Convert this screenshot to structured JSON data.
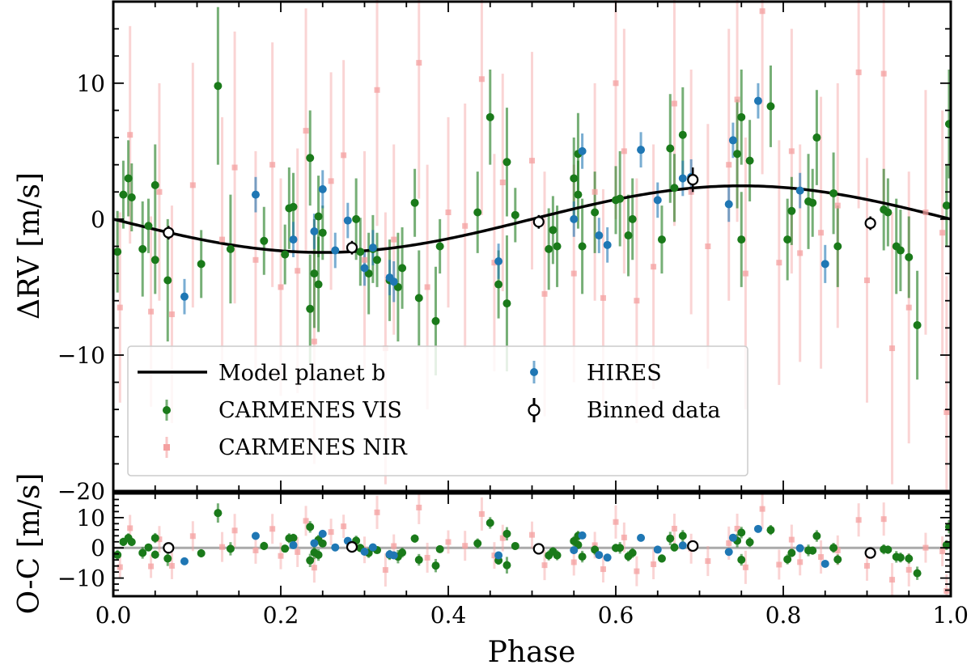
{
  "chart_data": [
    {
      "panel": "top",
      "type": "scatter",
      "xlim": [
        0.0,
        1.0
      ],
      "ylim": [
        -20,
        16
      ],
      "ylabel": "ΔRV [m/s]",
      "xticks": [
        0.0,
        0.2,
        0.4,
        0.6,
        0.8,
        1.0
      ],
      "yticks": [
        -20,
        -10,
        0,
        10
      ],
      "yticklabels": [
        "−20",
        "−10",
        "0",
        "10"
      ],
      "legend": {
        "position": "lower-left",
        "entries": [
          "Model planet b",
          "CARMENES VIS",
          "CARMENES NIR",
          "HIRES",
          "Binned data"
        ]
      },
      "model": {
        "name": "Model planet b",
        "amplitude": 2.45,
        "color": "#000000",
        "description_formula": "-K*sin(2*pi*phase)"
      },
      "series": [
        {
          "name": "CARMENES VIS",
          "color": "#1a7a1a",
          "marker": "circle",
          "points": [
            [
              0.005,
              -2.4,
              3.0
            ],
            [
              0.012,
              1.8,
              2.5
            ],
            [
              0.018,
              3.0,
              2.8
            ],
            [
              0.022,
              1.6,
              2.5
            ],
            [
              0.035,
              -2.2,
              3.5
            ],
            [
              0.042,
              -0.5,
              2.0
            ],
            [
              0.05,
              2.5,
              3.0
            ],
            [
              0.05,
              -3.0,
              2.5
            ],
            [
              0.065,
              -4.5,
              4.5
            ],
            [
              0.105,
              -3.3,
              2.5
            ],
            [
              0.125,
              9.8,
              5.8
            ],
            [
              0.14,
              -2.2,
              4.0
            ],
            [
              0.18,
              -1.6,
              2.5
            ],
            [
              0.205,
              -2.6,
              2.2
            ],
            [
              0.21,
              0.8,
              3.0
            ],
            [
              0.215,
              0.9,
              2.5
            ],
            [
              0.235,
              4.5,
              3.5
            ],
            [
              0.235,
              -6.6,
              4.0
            ],
            [
              0.24,
              -4.0,
              4.0
            ],
            [
              0.245,
              0.2,
              3.0
            ],
            [
              0.245,
              -4.8,
              3.5
            ],
            [
              0.25,
              -1.0,
              2.0
            ],
            [
              0.29,
              0.0,
              3.0
            ],
            [
              0.295,
              -2.4,
              2.5
            ],
            [
              0.305,
              -4.0,
              3.0
            ],
            [
              0.31,
              -2.2,
              2.5
            ],
            [
              0.315,
              -3.0,
              2.0
            ],
            [
              0.33,
              -4.5,
              3.0
            ],
            [
              0.34,
              -5.0,
              4.0
            ],
            [
              0.345,
              -3.6,
              3.0
            ],
            [
              0.36,
              1.2,
              2.5
            ],
            [
              0.365,
              -5.8,
              3.5
            ],
            [
              0.385,
              -7.5,
              4.0
            ],
            [
              0.39,
              -2.0,
              2.0
            ],
            [
              0.435,
              0.5,
              3.0
            ],
            [
              0.45,
              7.5,
              3.5
            ],
            [
              0.46,
              -4.8,
              2.5
            ],
            [
              0.47,
              4.2,
              4.0
            ],
            [
              0.47,
              -6.2,
              5.0
            ],
            [
              0.48,
              0.3,
              2.0
            ],
            [
              0.52,
              -2.2,
              3.0
            ],
            [
              0.525,
              -0.8,
              2.5
            ],
            [
              0.53,
              -2.0,
              3.0
            ],
            [
              0.55,
              3.0,
              3.0
            ],
            [
              0.555,
              1.8,
              2.5
            ],
            [
              0.555,
              4.8,
              3.0
            ],
            [
              0.56,
              -2.0,
              3.5
            ],
            [
              0.575,
              0.5,
              3.0
            ],
            [
              0.6,
              1.4,
              2.5
            ],
            [
              0.605,
              1.5,
              3.5
            ],
            [
              0.615,
              -1.2,
              3.0
            ],
            [
              0.62,
              0.0,
              3.0
            ],
            [
              0.655,
              -1.5,
              2.5
            ],
            [
              0.665,
              5.2,
              4.0
            ],
            [
              0.67,
              2.3,
              2.5
            ],
            [
              0.68,
              6.2,
              3.5
            ],
            [
              0.745,
              4.8,
              4.0
            ],
            [
              0.75,
              -1.5,
              3.5
            ],
            [
              0.75,
              7.5,
              3.5
            ],
            [
              0.76,
              4.3,
              3.0
            ],
            [
              0.785,
              8.3,
              3.0
            ],
            [
              0.805,
              -1.5,
              3.0
            ],
            [
              0.81,
              0.6,
              2.5
            ],
            [
              0.83,
              1.3,
              3.5
            ],
            [
              0.835,
              1.2,
              2.5
            ],
            [
              0.84,
              6.0,
              3.5
            ],
            [
              0.86,
              1.9,
              3.0
            ],
            [
              0.865,
              -2.0,
              3.0
            ],
            [
              0.92,
              0.7,
              3.0
            ],
            [
              0.925,
              0.5,
              2.5
            ],
            [
              0.935,
              -2.0,
              3.5
            ],
            [
              0.94,
              -2.3,
              3.0
            ],
            [
              0.95,
              -2.8,
              3.0
            ],
            [
              0.96,
              -7.8,
              4.0
            ],
            [
              0.995,
              1.0,
              3.0
            ],
            [
              0.998,
              7.0,
              4.0
            ]
          ]
        },
        {
          "name": "CARMENES NIR",
          "color": "#f4a0a0",
          "marker": "square",
          "points": [
            [
              0.008,
              -6.5,
              7.0
            ],
            [
              0.02,
              6.2,
              8.0
            ],
            [
              0.045,
              -6.8,
              7.0
            ],
            [
              0.055,
              2.0,
              8.0
            ],
            [
              0.07,
              -7.0,
              8.0
            ],
            [
              0.095,
              2.5,
              9.0
            ],
            [
              0.13,
              -1.5,
              9.0
            ],
            [
              0.145,
              3.8,
              10.0
            ],
            [
              0.17,
              -3.0,
              8.0
            ],
            [
              0.19,
              4.0,
              9.0
            ],
            [
              0.2,
              -5.0,
              8.0
            ],
            [
              0.22,
              -3.8,
              9.0
            ],
            [
              0.23,
              6.5,
              9.0
            ],
            [
              0.24,
              -9.0,
              9.0
            ],
            [
              0.26,
              2.8,
              8.0
            ],
            [
              0.275,
              4.7,
              7.0
            ],
            [
              0.3,
              -3.0,
              8.0
            ],
            [
              0.315,
              9.5,
              10.0
            ],
            [
              0.325,
              -9.5,
              10.0
            ],
            [
              0.335,
              -1.5,
              7.0
            ],
            [
              0.365,
              11.5,
              10.0
            ],
            [
              0.375,
              -5.0,
              9.0
            ],
            [
              0.4,
              0.5,
              7.0
            ],
            [
              0.42,
              -0.5,
              9.0
            ],
            [
              0.44,
              10.3,
              10.0
            ],
            [
              0.455,
              -3.2,
              8.0
            ],
            [
              0.465,
              2.7,
              8.0
            ],
            [
              0.5,
              4.3,
              8.0
            ],
            [
              0.515,
              -5.5,
              9.0
            ],
            [
              0.55,
              -4.0,
              8.0
            ],
            [
              0.575,
              2.0,
              8.0
            ],
            [
              0.585,
              -5.8,
              8.0
            ],
            [
              0.6,
              10.0,
              10.0
            ],
            [
              0.61,
              5.0,
              9.0
            ],
            [
              0.625,
              -6.0,
              9.0
            ],
            [
              0.645,
              -3.5,
              9.0
            ],
            [
              0.67,
              8.5,
              9.0
            ],
            [
              0.69,
              2.0,
              9.0
            ],
            [
              0.71,
              -2.0,
              9.0
            ],
            [
              0.735,
              4.0,
              10.0
            ],
            [
              0.745,
              8.8,
              9.0
            ],
            [
              0.755,
              -4.0,
              10.0
            ],
            [
              0.775,
              15.3,
              12.0
            ],
            [
              0.795,
              -3.2,
              9.0
            ],
            [
              0.81,
              5.0,
              9.0
            ],
            [
              0.82,
              -2.5,
              8.0
            ],
            [
              0.845,
              -1.0,
              10.0
            ],
            [
              0.865,
              1.0,
              9.0
            ],
            [
              0.89,
              10.8,
              10.0
            ],
            [
              0.9,
              -4.5,
              9.0
            ],
            [
              0.92,
              10.7,
              10.0
            ],
            [
              0.93,
              -9.5,
              10.0
            ],
            [
              0.95,
              -6.5,
              10.0
            ],
            [
              0.97,
              0.5,
              9.0
            ],
            [
              0.99,
              -1.0,
              9.0
            ],
            [
              0.995,
              -14.2,
              10.0
            ]
          ]
        },
        {
          "name": "HIRES",
          "color": "#1f77b4",
          "marker": "circle",
          "points": [
            [
              0.085,
              -5.7,
              1.3
            ],
            [
              0.17,
              1.8,
              1.3
            ],
            [
              0.215,
              -1.5,
              1.3
            ],
            [
              0.24,
              -0.9,
              1.3
            ],
            [
              0.25,
              2.2,
              1.4
            ],
            [
              0.265,
              -2.3,
              1.3
            ],
            [
              0.28,
              -0.1,
              1.3
            ],
            [
              0.3,
              -3.6,
              1.3
            ],
            [
              0.31,
              -2.1,
              1.3
            ],
            [
              0.33,
              -4.3,
              1.3
            ],
            [
              0.335,
              -4.6,
              1.5
            ],
            [
              0.46,
              -3.1,
              1.3
            ],
            [
              0.55,
              0.0,
              1.3
            ],
            [
              0.56,
              5.0,
              1.3
            ],
            [
              0.58,
              -1.2,
              1.3
            ],
            [
              0.59,
              -1.9,
              1.3
            ],
            [
              0.63,
              5.1,
              1.3
            ],
            [
              0.65,
              1.4,
              1.3
            ],
            [
              0.68,
              3.0,
              1.3
            ],
            [
              0.69,
              3.1,
              1.3
            ],
            [
              0.735,
              1.1,
              1.3
            ],
            [
              0.74,
              5.8,
              1.3
            ],
            [
              0.77,
              8.7,
              1.3
            ],
            [
              0.82,
              2.1,
              1.3
            ],
            [
              0.85,
              -3.3,
              1.4
            ]
          ]
        },
        {
          "name": "Binned data",
          "color": "#000000",
          "marker": "open-circle",
          "points": [
            [
              0.066,
              -1.0,
              0.5
            ],
            [
              0.285,
              -2.1,
              0.5
            ],
            [
              0.508,
              -0.2,
              0.5
            ],
            [
              0.692,
              2.9,
              0.9
            ],
            [
              0.904,
              -0.3,
              0.5
            ]
          ]
        }
      ]
    },
    {
      "panel": "bottom",
      "type": "scatter",
      "xlim": [
        0.0,
        1.0
      ],
      "ylim": [
        -16,
        18
      ],
      "xlabel": "Phase",
      "ylabel": "O-C [m/s]",
      "xticks": [
        0.0,
        0.2,
        0.4,
        0.6,
        0.8,
        1.0
      ],
      "xticklabels": [
        "0.0",
        "0.2",
        "0.4",
        "0.6",
        "0.8",
        "1.0"
      ],
      "yticks": [
        -10,
        0,
        10
      ],
      "yticklabels": [
        "−10",
        "0",
        "10"
      ],
      "zero_line": 0
    }
  ]
}
